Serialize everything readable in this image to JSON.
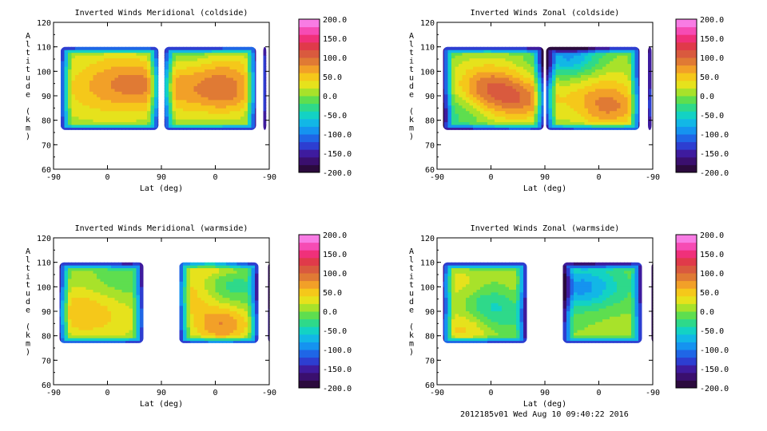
{
  "footer": "2012185v01 Wed Aug 10 09:40:22 2016",
  "colorbar": {
    "labels": [
      "200.0",
      "150.0",
      "100.0",
      "50.0",
      "0.0",
      "-50.0",
      "-100.0",
      "-150.0",
      "-200.0"
    ],
    "colors": [
      "#2b0a3d",
      "#3a0f6e",
      "#3e1b9e",
      "#2d3ed1",
      "#1f66e6",
      "#1593f0",
      "#12b7e6",
      "#13d2c4",
      "#2ed98a",
      "#5ede4f",
      "#a8e22a",
      "#e6e21c",
      "#f5c81a",
      "#f2a028",
      "#e07a34",
      "#d95a3e",
      "#e03a4a",
      "#f0307a",
      "#f64bb4",
      "#f87ce4"
    ]
  },
  "chart_data": [
    {
      "type": "heatmap",
      "title": "Inverted Winds Meridional (coldside)",
      "xlabel": "Lat (deg)",
      "ylabel": "Altitude (km)",
      "xticks": [
        "-90",
        "0",
        "90",
        "0",
        "-90"
      ],
      "yticks": [
        "60",
        "70",
        "80",
        "90",
        "100",
        "110",
        "120"
      ],
      "ylim": [
        60,
        120
      ],
      "zlim": [
        -200,
        200
      ],
      "blobs": [
        {
          "lat": 5,
          "alt": 95,
          "w": 0.16,
          "val": 60
        },
        {
          "lat": 60,
          "alt": 95,
          "w": 0.12,
          "val": 40
        },
        {
          "lat": -60,
          "alt": 88,
          "w": 0.12,
          "val": 10
        },
        {
          "lat": 150,
          "alt": 108,
          "w": 0.12,
          "val": -40
        },
        {
          "lat": 180,
          "alt": 100,
          "w": 0.14,
          "val": 70
        },
        {
          "lat": 130,
          "alt": 90,
          "w": 0.12,
          "val": 30
        },
        {
          "lat": 205,
          "alt": 90,
          "w": 0.1,
          "val": 50
        }
      ]
    },
    {
      "type": "heatmap",
      "title": "Inverted Winds Zonal (coldside)",
      "xlabel": "Lat (deg)",
      "ylabel": "Altitude (km)",
      "xticks": [
        "-90",
        "0",
        "90",
        "0",
        "-90"
      ],
      "yticks": [
        "60",
        "70",
        "80",
        "90",
        "100",
        "110",
        "120"
      ],
      "ylim": [
        60,
        120
      ],
      "zlim": [
        -200,
        200
      ],
      "blobs": [
        {
          "lat": -5,
          "alt": 93,
          "w": 0.12,
          "val": 100
        },
        {
          "lat": 50,
          "alt": 88,
          "w": 0.1,
          "val": 60
        },
        {
          "lat": -60,
          "alt": 85,
          "w": 0.12,
          "val": -40
        },
        {
          "lat": 130,
          "alt": 106,
          "w": 0.1,
          "val": -90
        },
        {
          "lat": 180,
          "alt": 92,
          "w": 0.14,
          "val": 40
        },
        {
          "lat": 110,
          "alt": 90,
          "w": 0.1,
          "val": 10
        },
        {
          "lat": 200,
          "alt": 85,
          "w": 0.1,
          "val": 60
        }
      ]
    },
    {
      "type": "heatmap",
      "title": "Inverted Winds Meridional (warmside)",
      "xlabel": "Lat (deg)",
      "ylabel": "Altitude (km)",
      "xticks": [
        "-90",
        "0",
        "90",
        "0",
        "-90"
      ],
      "yticks": [
        "60",
        "70",
        "80",
        "90",
        "100",
        "110",
        "120"
      ],
      "ylim": [
        60,
        120
      ],
      "zlim": [
        -200,
        200
      ],
      "blobs": [
        {
          "lat": -60,
          "alt": 90,
          "w": 0.12,
          "val": 40
        },
        {
          "lat": 0,
          "alt": 88,
          "w": 0.14,
          "val": 30
        },
        {
          "lat": 30,
          "alt": 102,
          "w": 0.1,
          "val": -20
        },
        {
          "lat": 175,
          "alt": 116,
          "w": 0.1,
          "val": 140
        },
        {
          "lat": 190,
          "alt": 85,
          "w": 0.1,
          "val": 80
        },
        {
          "lat": 140,
          "alt": 98,
          "w": 0.1,
          "val": 50
        },
        {
          "lat": 200,
          "alt": 100,
          "w": 0.1,
          "val": -40
        }
      ]
    },
    {
      "type": "heatmap",
      "title": "Inverted Winds Zonal (warmside)",
      "xlabel": "Lat (deg)",
      "ylabel": "Altitude (km)",
      "xticks": [
        "-90",
        "0",
        "90",
        "0",
        "-90"
      ],
      "yticks": [
        "60",
        "70",
        "80",
        "90",
        "100",
        "110",
        "120"
      ],
      "ylim": [
        60,
        120
      ],
      "zlim": [
        -200,
        200
      ],
      "blobs": [
        {
          "lat": 0,
          "alt": 92,
          "w": 0.12,
          "val": -70
        },
        {
          "lat": -50,
          "alt": 100,
          "w": 0.1,
          "val": 40
        },
        {
          "lat": 40,
          "alt": 98,
          "w": 0.1,
          "val": 30
        },
        {
          "lat": -40,
          "alt": 84,
          "w": 0.1,
          "val": 60
        },
        {
          "lat": 140,
          "alt": 100,
          "w": 0.1,
          "val": -60
        },
        {
          "lat": 180,
          "alt": 100,
          "w": 0.12,
          "val": -40
        },
        {
          "lat": 200,
          "alt": 88,
          "w": 0.1,
          "val": 10
        }
      ]
    }
  ]
}
